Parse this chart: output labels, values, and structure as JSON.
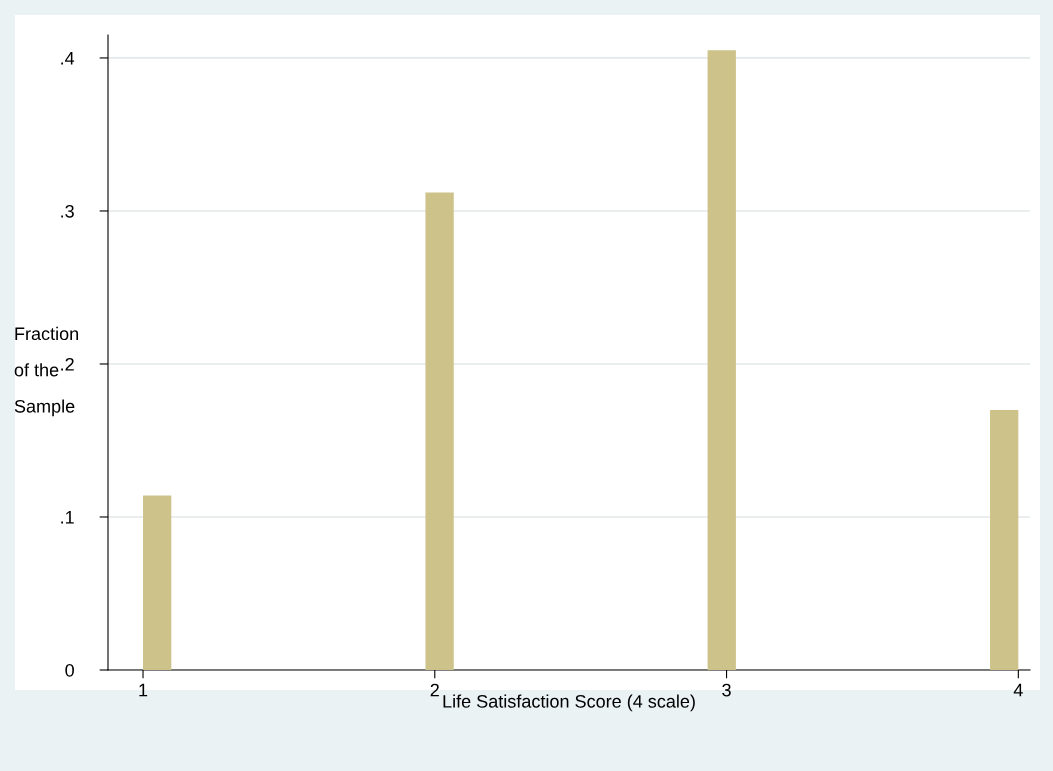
{
  "chart_data": {
    "type": "histogram",
    "xlabel": "Life Satisfaction Score (4 scale)",
    "ylabel": "Fraction\n\nof the\n\nSample",
    "bins": [
      1,
      1.097,
      1.194,
      1.29,
      1.387,
      1.484,
      1.581,
      1.677,
      1.774,
      1.871,
      1.968,
      2.065,
      2.161,
      2.258,
      2.355,
      2.452,
      2.548,
      2.645,
      2.742,
      2.839,
      2.935,
      3.032,
      3.129,
      3.226,
      3.323,
      3.419,
      3.516,
      3.613,
      3.71,
      3.806,
      3.903,
      4
    ],
    "values": [
      0.114,
      0,
      0,
      0,
      0,
      0,
      0,
      0,
      0,
      0,
      0.312,
      0,
      0,
      0,
      0,
      0,
      0,
      0,
      0,
      0,
      0.405,
      0,
      0,
      0,
      0,
      0,
      0,
      0,
      0,
      0,
      0.17
    ],
    "color": "#cdc38a",
    "xlim": [
      0.88,
      4.04
    ],
    "xticks": [
      1,
      2,
      3,
      4
    ],
    "ylim": [
      0,
      0.415
    ],
    "yticks": [
      {
        "value": 0,
        "label": "0"
      },
      {
        "value": 0.1,
        "label": ".1"
      },
      {
        "value": 0.2,
        "label": ".2"
      },
      {
        "value": 0.3,
        "label": ".3"
      },
      {
        "value": 0.4,
        "label": ".4"
      }
    ],
    "grid": "y"
  }
}
